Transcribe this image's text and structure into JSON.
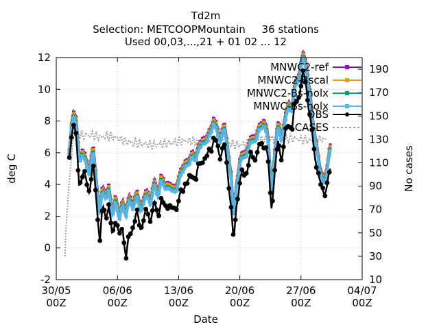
{
  "chart_data": {
    "type": "line",
    "title": "Td2m",
    "subtitle_1": "Selection: METCOOPMountain     36 stations",
    "subtitle_2": "Used 00,03,...,21 + 01 02 ... 12",
    "xlabel": "Date",
    "ylabel": "deg C",
    "y2label": "No cases",
    "x_ticks": [
      {
        "d": 0,
        "l1": "30/05",
        "l2": "00Z"
      },
      {
        "d": 7,
        "l1": "06/06",
        "l2": "00Z"
      },
      {
        "d": 14,
        "l1": "13/06",
        "l2": "00Z"
      },
      {
        "d": 21,
        "l1": "20/06",
        "l2": "00Z"
      },
      {
        "d": 28,
        "l1": "27/06",
        "l2": "00Z"
      },
      {
        "d": 35,
        "l1": "04/07",
        "l2": "00Z"
      }
    ],
    "xlim_days": [
      0,
      35
    ],
    "ylim": [
      -2,
      12
    ],
    "y_ticks": [
      -2,
      0,
      2,
      4,
      6,
      8,
      10,
      12
    ],
    "y2lim": [
      10,
      200
    ],
    "y2_ticks": [
      10,
      30,
      50,
      70,
      90,
      110,
      130,
      150,
      170,
      190
    ],
    "grid": true,
    "legend_position": "top-right",
    "series": [
      {
        "name": "MNWC2-ref",
        "color": "#9400d3",
        "offset": 0.35
      },
      {
        "name": "MNWC2-Bscal",
        "color": "#e69f00",
        "offset": 0.25
      },
      {
        "name": "MNWC2-Bs-nolx",
        "color": "#009e73",
        "offset": 0.1
      },
      {
        "name": "MNWC-Bs-nolx",
        "color": "#56b4e9",
        "offset": 0.0
      },
      {
        "name": "OBS",
        "color": "#000000",
        "offset": -1.0
      }
    ],
    "cases": {
      "name": "CASES",
      "color": "#a0a0a0"
    },
    "model_curve": [
      [
        1.5,
        5.8
      ],
      [
        1.8,
        8.0
      ],
      [
        2.0,
        8.2
      ],
      [
        2.3,
        7.6
      ],
      [
        2.6,
        5.6
      ],
      [
        3.0,
        5.8
      ],
      [
        3.4,
        5.2
      ],
      [
        3.8,
        4.8
      ],
      [
        4.2,
        6.0
      ],
      [
        4.6,
        4.0
      ],
      [
        5.0,
        2.2
      ],
      [
        5.3,
        3.4
      ],
      [
        5.6,
        3.2
      ],
      [
        6.0,
        3.6
      ],
      [
        6.4,
        1.8
      ],
      [
        6.8,
        3.2
      ],
      [
        7.2,
        1.5
      ],
      [
        7.6,
        2.8
      ],
      [
        8.0,
        2.0
      ],
      [
        8.4,
        2.9
      ],
      [
        8.8,
        2.6
      ],
      [
        9.2,
        3.1
      ],
      [
        9.6,
        2.4
      ],
      [
        10.0,
        2.8
      ],
      [
        10.4,
        3.2
      ],
      [
        10.8,
        2.9
      ],
      [
        11.2,
        3.8
      ],
      [
        11.6,
        3.3
      ],
      [
        12.0,
        4.2
      ],
      [
        12.4,
        3.6
      ],
      [
        12.8,
        4.0
      ],
      [
        13.2,
        3.4
      ],
      [
        13.6,
        3.6
      ],
      [
        14.0,
        4.1
      ],
      [
        14.4,
        4.6
      ],
      [
        14.8,
        5.4
      ],
      [
        15.2,
        5.0
      ],
      [
        15.6,
        5.9
      ],
      [
        16.0,
        5.5
      ],
      [
        16.4,
        6.2
      ],
      [
        16.8,
        6.8
      ],
      [
        17.2,
        6.4
      ],
      [
        17.6,
        7.3
      ],
      [
        18.0,
        7.8
      ],
      [
        18.4,
        7.2
      ],
      [
        18.8,
        6.8
      ],
      [
        19.2,
        7.4
      ],
      [
        19.6,
        6.2
      ],
      [
        20.0,
        4.4
      ],
      [
        20.3,
        1.5
      ],
      [
        20.6,
        3.8
      ],
      [
        21.0,
        5.2
      ],
      [
        21.4,
        5.6
      ],
      [
        21.8,
        6.0
      ],
      [
        22.2,
        6.4
      ],
      [
        22.6,
        6.8
      ],
      [
        23.0,
        7.0
      ],
      [
        23.4,
        7.4
      ],
      [
        23.8,
        7.9
      ],
      [
        24.2,
        6.8
      ],
      [
        24.6,
        3.6
      ],
      [
        25.0,
        5.8
      ],
      [
        25.4,
        7.6
      ],
      [
        25.8,
        6.9
      ],
      [
        26.2,
        7.8
      ],
      [
        26.6,
        9.0
      ],
      [
        27.0,
        8.6
      ],
      [
        27.4,
        10.2
      ],
      [
        27.8,
        10.8
      ],
      [
        28.2,
        11.8
      ],
      [
        28.6,
        11.4
      ],
      [
        29.0,
        9.6
      ],
      [
        29.4,
        7.4
      ],
      [
        29.8,
        6.4
      ],
      [
        30.2,
        4.4
      ],
      [
        30.6,
        4.2
      ],
      [
        31.0,
        4.8
      ],
      [
        31.4,
        6.2
      ]
    ],
    "obs_curve": [
      [
        1.5,
        5.7
      ],
      [
        1.8,
        7.6
      ],
      [
        2.0,
        7.8
      ],
      [
        2.3,
        6.6
      ],
      [
        2.6,
        4.2
      ],
      [
        3.0,
        4.6
      ],
      [
        3.4,
        4.2
      ],
      [
        3.8,
        3.8
      ],
      [
        4.2,
        5.0
      ],
      [
        4.6,
        3.2
      ],
      [
        5.0,
        0.4
      ],
      [
        5.3,
        2.4
      ],
      [
        5.6,
        2.2
      ],
      [
        6.0,
        2.6
      ],
      [
        6.4,
        0.6
      ],
      [
        6.8,
        2.2
      ],
      [
        7.2,
        0.5
      ],
      [
        7.6,
        1.4
      ],
      [
        8.0,
        -0.6
      ],
      [
        8.4,
        0.8
      ],
      [
        8.8,
        1.6
      ],
      [
        9.2,
        2.0
      ],
      [
        9.6,
        1.4
      ],
      [
        10.0,
        1.8
      ],
      [
        10.4,
        2.2
      ],
      [
        10.8,
        2.0
      ],
      [
        11.2,
        2.6
      ],
      [
        11.6,
        2.2
      ],
      [
        12.0,
        3.0
      ],
      [
        12.4,
        2.4
      ],
      [
        12.8,
        3.0
      ],
      [
        13.2,
        2.2
      ],
      [
        13.6,
        2.6
      ],
      [
        14.0,
        3.0
      ],
      [
        14.4,
        3.4
      ],
      [
        14.8,
        4.4
      ],
      [
        15.2,
        4.0
      ],
      [
        15.6,
        4.8
      ],
      [
        16.0,
        4.4
      ],
      [
        16.4,
        5.2
      ],
      [
        16.8,
        5.8
      ],
      [
        17.2,
        5.4
      ],
      [
        17.6,
        6.4
      ],
      [
        18.0,
        6.8
      ],
      [
        18.4,
        6.4
      ],
      [
        18.8,
        6.0
      ],
      [
        19.2,
        6.4
      ],
      [
        19.6,
        5.0
      ],
      [
        20.0,
        2.6
      ],
      [
        20.3,
        0.0
      ],
      [
        20.6,
        2.8
      ],
      [
        21.0,
        4.2
      ],
      [
        21.4,
        4.6
      ],
      [
        21.8,
        5.0
      ],
      [
        22.2,
        5.6
      ],
      [
        22.6,
        5.8
      ],
      [
        23.0,
        6.0
      ],
      [
        23.4,
        6.4
      ],
      [
        23.8,
        6.8
      ],
      [
        24.2,
        5.6
      ],
      [
        24.6,
        2.6
      ],
      [
        25.0,
        4.8
      ],
      [
        25.4,
        6.6
      ],
      [
        25.8,
        5.8
      ],
      [
        26.2,
        7.0
      ],
      [
        26.6,
        8.0
      ],
      [
        27.0,
        7.6
      ],
      [
        27.4,
        9.2
      ],
      [
        27.8,
        9.8
      ],
      [
        28.2,
        10.8
      ],
      [
        28.6,
        10.4
      ],
      [
        29.0,
        8.4
      ],
      [
        29.4,
        6.4
      ],
      [
        29.8,
        5.4
      ],
      [
        30.2,
        3.8
      ],
      [
        30.6,
        3.6
      ],
      [
        31.0,
        4.0
      ],
      [
        31.4,
        4.8
      ]
    ],
    "cases_curve": [
      [
        1.0,
        30
      ],
      [
        1.15,
        60
      ],
      [
        1.3,
        75
      ],
      [
        1.5,
        95
      ],
      [
        1.7,
        110
      ],
      [
        1.85,
        125
      ],
      [
        2.0,
        133
      ],
      [
        2.5,
        135
      ],
      [
        3.0,
        133
      ],
      [
        4.0,
        134
      ],
      [
        5.0,
        132
      ],
      [
        6.0,
        133
      ],
      [
        7.0,
        131
      ],
      [
        8.0,
        128
      ],
      [
        9.0,
        127
      ],
      [
        10.0,
        126
      ],
      [
        11.0,
        125
      ],
      [
        12.0,
        126
      ],
      [
        13.0,
        127
      ],
      [
        14.0,
        128
      ],
      [
        15.0,
        129
      ],
      [
        16.0,
        128
      ],
      [
        17.0,
        130
      ],
      [
        18.0,
        131
      ],
      [
        19.0,
        129
      ],
      [
        20.0,
        126
      ],
      [
        21.0,
        125
      ],
      [
        22.0,
        127
      ],
      [
        23.0,
        129
      ],
      [
        24.0,
        130
      ],
      [
        25.0,
        131
      ],
      [
        26.0,
        130
      ],
      [
        27.0,
        131
      ],
      [
        28.0,
        130
      ],
      [
        29.0,
        129
      ],
      [
        30.0,
        130
      ],
      [
        31.0,
        130
      ]
    ]
  }
}
